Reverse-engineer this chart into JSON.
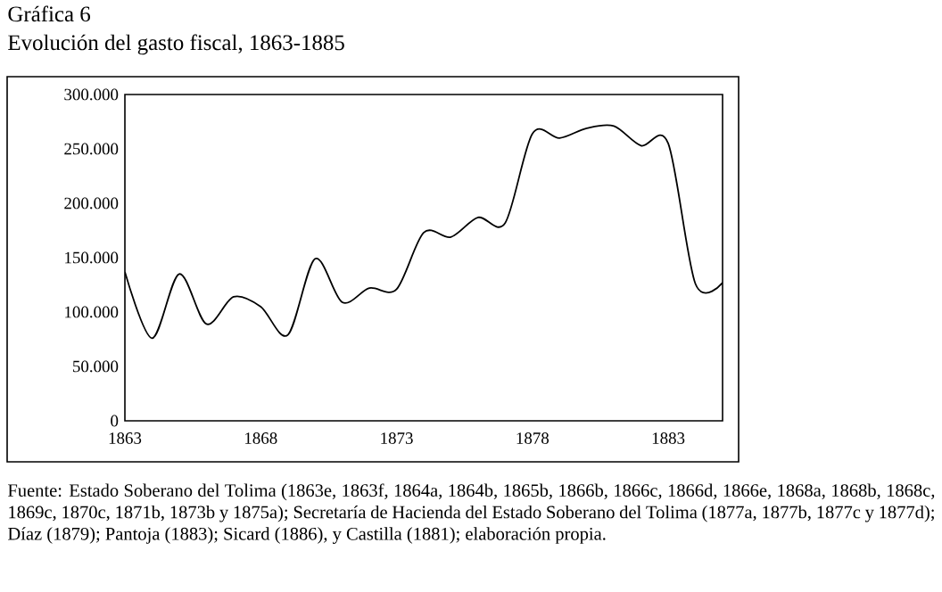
{
  "chart_data": {
    "type": "line",
    "title": "Gráfica 6",
    "subtitle": "Evolución del gasto fiscal, 1863-1885",
    "x": [
      1863,
      1864,
      1865,
      1866,
      1867,
      1868,
      1869,
      1870,
      1871,
      1872,
      1873,
      1874,
      1875,
      1876,
      1877,
      1878,
      1879,
      1880,
      1881,
      1882,
      1883,
      1884,
      1885
    ],
    "values": [
      137000,
      76000,
      135000,
      89000,
      114000,
      105000,
      79000,
      149000,
      109000,
      122000,
      121000,
      173000,
      169000,
      187000,
      182000,
      264000,
      260000,
      269000,
      271000,
      253000,
      255000,
      126000,
      127000
    ],
    "color": "#000000",
    "xlim": [
      1863,
      1885
    ],
    "xticks": [
      1863,
      1868,
      1873,
      1878,
      1883
    ],
    "ylim": [
      0,
      300000
    ],
    "yticks": [
      0,
      {
        "value": 50000,
        "label": "50.000"
      },
      {
        "value": 100000,
        "label": "100.000"
      },
      {
        "value": 150000,
        "label": "150.000"
      },
      {
        "value": 200000,
        "label": "200.000"
      },
      {
        "value": 250000,
        "label": "250.000"
      },
      {
        "value": 300000,
        "label": "300.000"
      }
    ],
    "marker": "none",
    "line_style": "solid",
    "annotations": [
      "Fuente: Estado Soberano del Tolima (1863e, 1863f, 1864a, 1864b, 1865b, 1866b, 1866c, 1866d, 1866e, 1868a, 1868b, 1868c, 1869c, 1870c, 1871b, 1873b y 1875a); Secretaría de Hacienda del Estado Soberano del Tolima (1877a, 1877b, 1877c y 1877d); Díaz (1879); Pantoja (1883); Sicard (1886), y Castilla (1881); elaboración propia."
    ]
  }
}
